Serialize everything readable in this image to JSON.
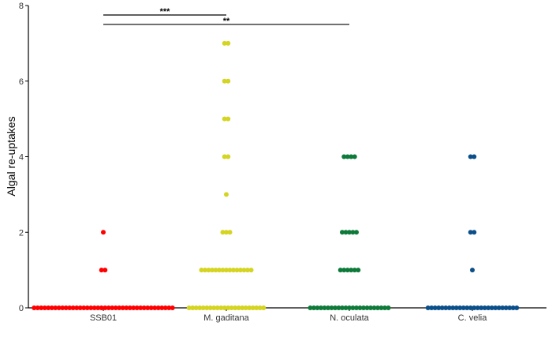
{
  "chart_data": {
    "type": "dot",
    "ylabel": "Algal re-uptakes",
    "ylim": [
      0,
      8
    ],
    "yticks": [
      0,
      2,
      4,
      6,
      8
    ],
    "grid": false,
    "categories": [
      "SSB01",
      "M. gaditana",
      "N. oculata",
      "C. velia"
    ],
    "series": [
      {
        "category": "SSB01",
        "color": "#ff0000",
        "counts": [
          {
            "value": 0,
            "n": 40
          },
          {
            "value": 1,
            "n": 2
          },
          {
            "value": 2,
            "n": 1
          }
        ]
      },
      {
        "category": "M. gaditana",
        "color": "#d4d421",
        "counts": [
          {
            "value": 0,
            "n": 22
          },
          {
            "value": 1,
            "n": 15
          },
          {
            "value": 2,
            "n": 3
          },
          {
            "value": 3,
            "n": 1
          },
          {
            "value": 4,
            "n": 2
          },
          {
            "value": 5,
            "n": 2
          },
          {
            "value": 6,
            "n": 2
          },
          {
            "value": 7,
            "n": 2
          }
        ]
      },
      {
        "category": "N. oculata",
        "color": "#0e7a3a",
        "counts": [
          {
            "value": 0,
            "n": 23
          },
          {
            "value": 1,
            "n": 6
          },
          {
            "value": 2,
            "n": 5
          },
          {
            "value": 4,
            "n": 4
          }
        ]
      },
      {
        "category": "C. velia",
        "color": "#0b4f8a",
        "counts": [
          {
            "value": 0,
            "n": 26
          },
          {
            "value": 1,
            "n": 1
          },
          {
            "value": 2,
            "n": 2
          },
          {
            "value": 4,
            "n": 2
          }
        ]
      }
    ],
    "significance": [
      {
        "from": "SSB01",
        "to": "M. gaditana",
        "label": "***",
        "y": 7.75
      },
      {
        "from": "SSB01",
        "to": "N. oculata",
        "label": "**",
        "y": 7.5
      }
    ]
  }
}
